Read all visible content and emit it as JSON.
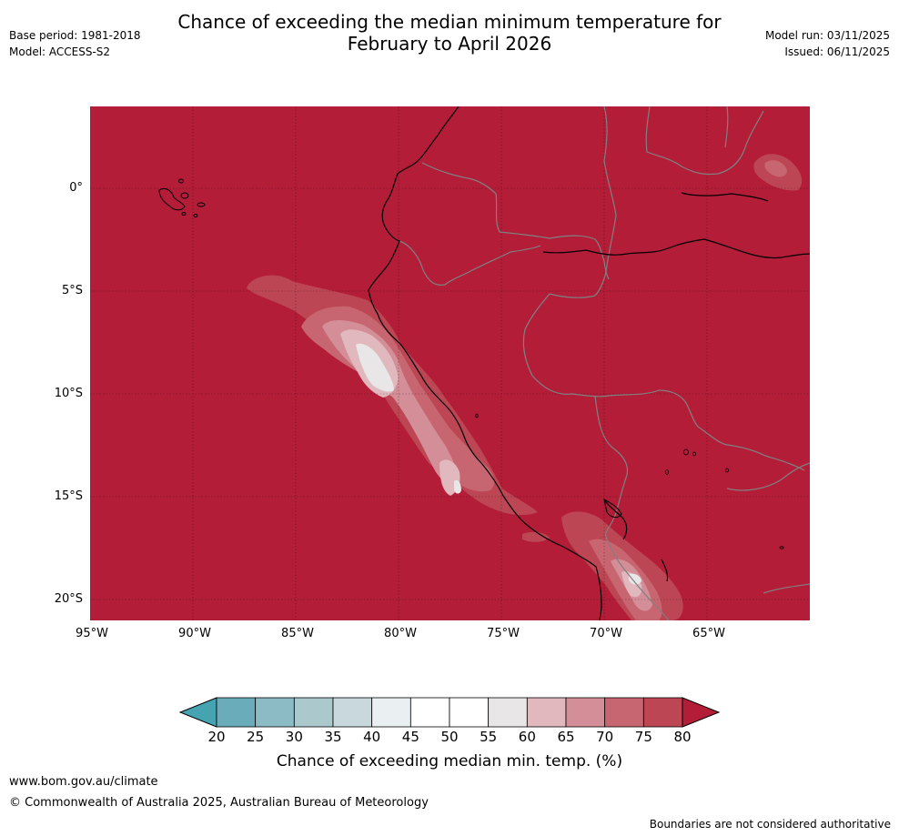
{
  "header": {
    "title_line1": "Chance of exceeding the median minimum temperature for",
    "title_line2": "February to April 2026",
    "base_period": "Base period: 1981-2018",
    "model": "Model: ACCESS-S2",
    "model_run": "Model run: 03/11/2025",
    "issued": "Issued: 06/11/2025"
  },
  "map": {
    "lon_range": [
      -95,
      -60
    ],
    "lat_range": [
      -21,
      4
    ],
    "lat_labels": [
      "0°",
      "5°S",
      "10°S",
      "15°S",
      "20°S"
    ],
    "lon_labels": [
      "95°W",
      "90°W",
      "85°W",
      "80°W",
      "75°W",
      "70°W",
      "65°W"
    ],
    "background_category": "80",
    "coastline_color": "#000000",
    "border_color": "#808080",
    "gridline_style": "dotted"
  },
  "colorbar": {
    "label": "Chance of exceeding median min. temp. (%)",
    "ticks": [
      "20",
      "25",
      "30",
      "35",
      "40",
      "45",
      "50",
      "55",
      "60",
      "65",
      "70",
      "75",
      "80"
    ],
    "colors": [
      "#45a3b2",
      "#6aacb9",
      "#8cbac5",
      "#abc8cd",
      "#c8d8dc",
      "#eaeff1",
      "#ffffff",
      "#ffffff",
      "#e8e6e7",
      "#e0b8bd",
      "#d48e97",
      "#c76670",
      "#bd4654",
      "#b31d38"
    ]
  },
  "footer": {
    "url": "www.bom.gov.au/climate",
    "copyright": "© Commonwealth of Australia 2025, Australian Bureau of Meteorology",
    "disclaimer": "Boundaries are not considered authoritative"
  }
}
